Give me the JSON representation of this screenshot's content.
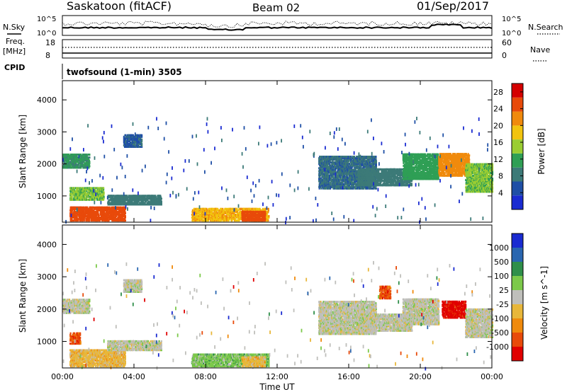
{
  "header": {
    "station": "Saskatoon (fitACF)",
    "beam": "Beam 02",
    "date": "01/Sep/2017"
  },
  "top_panel": {
    "left_label": "N.Sky",
    "right_label": "N.Search",
    "tick_top": "10^5",
    "tick_bottom": "10^0"
  },
  "freq_panel": {
    "left_label_1": "Freq.",
    "left_label_2": "[MHz]",
    "right_label": "Nave",
    "left_ticks": [
      "18",
      "8"
    ],
    "right_ticks": [
      "60",
      "0"
    ]
  },
  "cpid": {
    "label": "CPID",
    "text": "twofsound (1-min) 3505"
  },
  "colors": {
    "power_scale": [
      "#1a2bd1",
      "#1f4fa6",
      "#3c7a78",
      "#2f9f55",
      "#9acd32",
      "#f2c40f",
      "#f08a0c",
      "#e84a0a",
      "#d40000"
    ],
    "velocity_scale": [
      "#1a2bd1",
      "#2a66b0",
      "#2f8f4a",
      "#7cc94a",
      "#bfbfbb",
      "#e8b73a",
      "#f08a0c",
      "#e84a0a",
      "#e00000"
    ],
    "ground_scatter": "#bfbfbb"
  },
  "chart_data": [
    {
      "type": "heatmap",
      "name": "power",
      "xlabel": "Time UT",
      "ylabel": "Slant Range [km]",
      "xlim": [
        0,
        24
      ],
      "x_ticks": [
        "00:00",
        "04:00",
        "08:00",
        "12:00",
        "16:00",
        "20:00",
        "00:00"
      ],
      "ylim": [
        180,
        4600
      ],
      "y_ticks": [
        1000,
        2000,
        3000,
        4000
      ],
      "colorbar_label": "Power [dB]",
      "colorbar_ticks": [
        4,
        8,
        12,
        16,
        20,
        24,
        28
      ],
      "colorbar_range": [
        0,
        30
      ],
      "regions": [
        {
          "t0": 0.0,
          "t1": 1.5,
          "r0": 1850,
          "r1": 2300,
          "level": 10
        },
        {
          "t0": 0.4,
          "t1": 3.5,
          "r0": 200,
          "r1": 650,
          "level": 26
        },
        {
          "t0": 0.4,
          "t1": 2.3,
          "r0": 850,
          "r1": 1250,
          "level": 14
        },
        {
          "t0": 2.5,
          "t1": 5.5,
          "r0": 700,
          "r1": 1000,
          "level": 8
        },
        {
          "t0": 3.4,
          "t1": 4.4,
          "r0": 2500,
          "r1": 2900,
          "level": 5
        },
        {
          "t0": 7.2,
          "t1": 11.5,
          "r0": 200,
          "r1": 600,
          "level": 20
        },
        {
          "t0": 10.0,
          "t1": 11.3,
          "r0": 200,
          "r1": 500,
          "level": 27
        },
        {
          "t0": 14.3,
          "t1": 17.5,
          "r0": 1200,
          "r1": 2200,
          "level": 6
        },
        {
          "t0": 16.5,
          "t1": 19.5,
          "r0": 1300,
          "r1": 1800,
          "level": 8
        },
        {
          "t0": 19.0,
          "t1": 21.0,
          "r0": 1500,
          "r1": 2300,
          "level": 12
        },
        {
          "t0": 21.0,
          "t1": 22.7,
          "r0": 1600,
          "r1": 2300,
          "level": 23
        },
        {
          "t0": 22.5,
          "t1": 24.0,
          "r0": 1100,
          "r1": 2000,
          "level": 14
        }
      ]
    },
    {
      "type": "heatmap",
      "name": "velocity",
      "xlabel": "Time UT",
      "ylabel": "Slant Range [km]",
      "xlim": [
        0,
        24
      ],
      "x_ticks": [
        "00:00",
        "04:00",
        "08:00",
        "12:00",
        "16:00",
        "20:00",
        "00:00"
      ],
      "ylim": [
        180,
        4600
      ],
      "y_ticks": [
        1000,
        2000,
        3000,
        4000
      ],
      "colorbar_label": "Velocity [m s^-1]",
      "colorbar_ticks": [
        "1000",
        "500",
        "100",
        "25",
        "-25",
        "-100",
        "-500",
        "-1000"
      ],
      "regions": [
        {
          "t0": 0.0,
          "t1": 1.5,
          "r0": 1850,
          "r1": 2300,
          "level": 4
        },
        {
          "t0": 0.4,
          "t1": 3.5,
          "r0": 200,
          "r1": 700,
          "level": 5
        },
        {
          "t0": 0.4,
          "t1": 1.0,
          "r0": 900,
          "r1": 1250,
          "level": 7
        },
        {
          "t0": 2.5,
          "t1": 5.5,
          "r0": 700,
          "r1": 1000,
          "level": 4
        },
        {
          "t0": 3.4,
          "t1": 4.4,
          "r0": 2500,
          "r1": 2900,
          "level": 4
        },
        {
          "t0": 7.2,
          "t1": 11.5,
          "r0": 200,
          "r1": 600,
          "level": 3
        },
        {
          "t0": 10.0,
          "t1": 11.3,
          "r0": 200,
          "r1": 500,
          "level": 5
        },
        {
          "t0": 14.3,
          "t1": 17.5,
          "r0": 1200,
          "r1": 2200,
          "level": 4
        },
        {
          "t0": 16.5,
          "t1": 19.5,
          "r0": 1300,
          "r1": 1800,
          "level": 4
        },
        {
          "t0": 17.7,
          "t1": 18.3,
          "r0": 2300,
          "r1": 2700,
          "level": 7
        },
        {
          "t0": 19.0,
          "t1": 21.0,
          "r0": 1500,
          "r1": 2300,
          "level": 4
        },
        {
          "t0": 21.2,
          "t1": 22.5,
          "r0": 1700,
          "r1": 2200,
          "level": 8
        },
        {
          "t0": 22.5,
          "t1": 24.0,
          "r0": 1100,
          "r1": 2000,
          "level": 4
        }
      ]
    }
  ]
}
